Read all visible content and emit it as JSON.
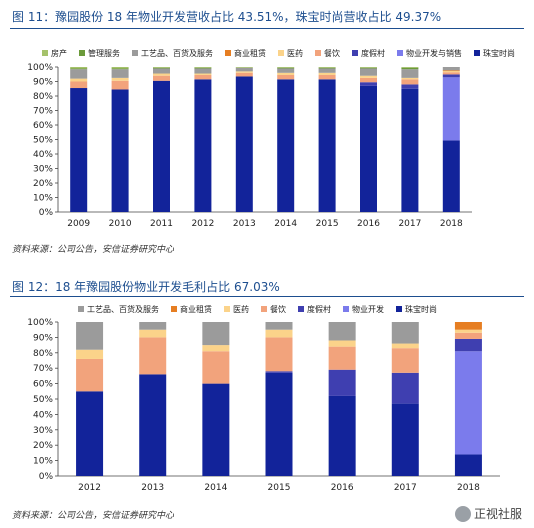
{
  "figure1": {
    "title": "图 11：豫园股份 18 年物业开发营收占比 43.51%，珠宝时尚营收占比 49.37%",
    "source": "资料来源：公司公告，安信证券研究中心"
  },
  "figure2": {
    "title": "图 12：18 年豫园股份物业开发毛利占比 67.03%",
    "source": "资料来源：公司公告，安信证券研究中心"
  },
  "watermark": {
    "text": "正视社服"
  },
  "colors": {
    "房产": "#a5c26b",
    "管理服务": "#6b9a3a",
    "工艺品、百货及服务": "#9b9b9b",
    "商业租赁": "#e67e22",
    "医药": "#fbd38a",
    "餐饮": "#f2a37c",
    "度假村": "#3f3fb0",
    "物业开发与销售": "#7b7bec",
    "物业开发": "#7b7bec",
    "珠宝时尚": "#12239a"
  },
  "chart_data": [
    {
      "type": "bar",
      "stacked": true,
      "categories": [
        "2009",
        "2010",
        "2011",
        "2012",
        "2013",
        "2014",
        "2015",
        "2016",
        "2017",
        "2018"
      ],
      "ylim": [
        0,
        100
      ],
      "yticks": [
        "0%",
        "10%",
        "20%",
        "30%",
        "40%",
        "50%",
        "60%",
        "70%",
        "80%",
        "90%",
        "100%"
      ],
      "legend_position": "top",
      "series": [
        {
          "name": "珠宝时尚",
          "values": [
            85.5,
            84.5,
            90.5,
            91.5,
            93.5,
            91.5,
            91.5,
            87.0,
            85.0,
            49.4
          ]
        },
        {
          "name": "物业开发与销售",
          "values": [
            0,
            0,
            0,
            0,
            0,
            0,
            0,
            0,
            0,
            43.5
          ]
        },
        {
          "name": "度假村",
          "values": [
            0,
            0,
            0,
            0,
            0,
            0,
            0,
            2.5,
            3.0,
            2.0
          ]
        },
        {
          "name": "餐饮",
          "values": [
            4.5,
            6.0,
            3.5,
            3.0,
            2.5,
            3.0,
            3.0,
            3.0,
            3.5,
            1.5
          ]
        },
        {
          "name": "医药",
          "values": [
            2.0,
            2.0,
            1.5,
            1.0,
            1.0,
            1.5,
            1.5,
            1.5,
            1.0,
            0.8
          ]
        },
        {
          "name": "商业租赁",
          "values": [
            0,
            0,
            0,
            0,
            0,
            0,
            0,
            0,
            0,
            0.5
          ]
        },
        {
          "name": "工艺品、百货及服务",
          "values": [
            6.5,
            6.0,
            3.5,
            3.5,
            2.5,
            3.0,
            3.0,
            5.0,
            6.0,
            2.3
          ]
        },
        {
          "name": "管理服务",
          "values": [
            0.5,
            0.5,
            0.5,
            0.5,
            0,
            0.5,
            0.5,
            0.5,
            1.0,
            0
          ]
        },
        {
          "name": "房产",
          "values": [
            1.0,
            1.0,
            0.5,
            0.5,
            0.5,
            0.5,
            0.5,
            0.5,
            0.5,
            0
          ]
        }
      ]
    },
    {
      "type": "bar",
      "stacked": true,
      "categories": [
        "2012",
        "2013",
        "2014",
        "2015",
        "2016",
        "2017",
        "2018"
      ],
      "ylim": [
        0,
        100
      ],
      "yticks": [
        "0%",
        "10%",
        "20%",
        "30%",
        "40%",
        "50%",
        "60%",
        "70%",
        "80%",
        "90%",
        "100%"
      ],
      "legend_position": "top",
      "series": [
        {
          "name": "珠宝时尚",
          "values": [
            55,
            66,
            60,
            67,
            52,
            47,
            14
          ]
        },
        {
          "name": "物业开发",
          "values": [
            0,
            0,
            0,
            0,
            0,
            0,
            67
          ]
        },
        {
          "name": "度假村",
          "values": [
            0,
            0,
            0,
            1,
            17,
            20,
            8
          ]
        },
        {
          "name": "餐饮",
          "values": [
            21,
            24,
            21,
            22,
            15,
            16,
            4
          ]
        },
        {
          "name": "医药",
          "values": [
            6,
            5,
            4,
            5,
            4,
            3,
            2
          ]
        },
        {
          "name": "商业租赁",
          "values": [
            0,
            0,
            0,
            0,
            0,
            0,
            5
          ]
        },
        {
          "name": "工艺品、百货及服务",
          "values": [
            18,
            5,
            15,
            5,
            12,
            14,
            0
          ]
        }
      ]
    }
  ]
}
